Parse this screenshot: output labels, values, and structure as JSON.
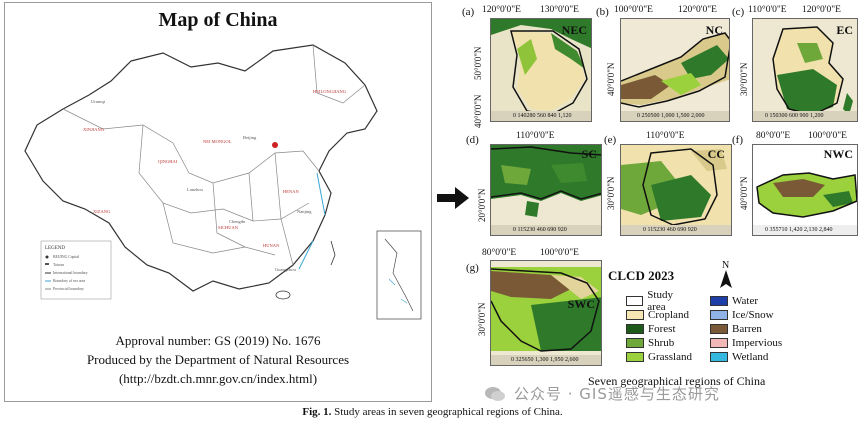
{
  "china_map": {
    "title": "Map of China",
    "approval": "Approval number: GS (2019) No. 1676",
    "produced_by": "Produced by the Department of Natural Resources",
    "url": "(http://bzdt.ch.mnr.gov.cn/index.html)"
  },
  "panels": [
    {
      "label": "(a)",
      "code": "NEC",
      "lon": [
        "120°0'0\"E",
        "130°0'0\"E"
      ],
      "lat": [
        "50°0'0\"N",
        "40°0'0\"N"
      ],
      "scale": "0 140280 560 840 1,120"
    },
    {
      "label": "(b)",
      "code": "NC",
      "lon": [
        "100°0'0\"E",
        "120°0'0\"E"
      ],
      "lat": [
        "40°0'0\"N"
      ],
      "scale": "0 250500 1,000 1,500 2,000"
    },
    {
      "label": "(c)",
      "code": "EC",
      "lon": [
        "110°0'0\"E",
        "120°0'0\"E"
      ],
      "lat": [
        "30°0'0\"N"
      ],
      "scale": "0 150300 600 900 1,200"
    },
    {
      "label": "(d)",
      "code": "SC",
      "lon": [
        "110°0'0\"E"
      ],
      "lat": [
        "20°0'0\"N"
      ],
      "scale": "0 115230 460 690 920"
    },
    {
      "label": "(e)",
      "code": "CC",
      "lon": [
        "110°0'0\"E"
      ],
      "lat": [
        "30°0'0\"N"
      ],
      "scale": "0 115230 460 690 920"
    },
    {
      "label": "(f)",
      "code": "NWC",
      "lon": [
        "80°0'0\"E",
        "100°0'0\"E"
      ],
      "lat": [
        "40°0'0\"N"
      ],
      "scale": "0 355710 1,420 2,130 2,840"
    },
    {
      "label": "(g)",
      "code": "SWC",
      "lon": [
        "80°0'0\"E",
        "100°0'0\"E"
      ],
      "lat": [
        "30°0'0\"N"
      ],
      "scale": "0 325650 1,300 1,950 2,600"
    }
  ],
  "legend": {
    "title": "CLCD 2023",
    "col1": [
      {
        "name": "Study area",
        "color": "#ffffff"
      },
      {
        "name": "Cropland",
        "color": "#f5e6b3"
      },
      {
        "name": "Forest",
        "color": "#1e5a1a"
      },
      {
        "name": "Shrub",
        "color": "#6fa83a"
      },
      {
        "name": "Grassland",
        "color": "#9bd13d"
      }
    ],
    "col2": [
      {
        "name": "Water",
        "color": "#1f3fa8"
      },
      {
        "name": "Ice/Snow",
        "color": "#8fb3e6"
      },
      {
        "name": "Barren",
        "color": "#7a5a36"
      },
      {
        "name": "Impervious",
        "color": "#f2b7b7"
      },
      {
        "name": "Wetland",
        "color": "#35b8e0"
      }
    ]
  },
  "north_label": "N",
  "regions_caption": "Seven geographical regions of China",
  "figure_caption": {
    "bold": "Fig. 1.",
    "text": "Study areas in seven geographical regions of China."
  },
  "watermark": "公众号 · GIS遥感与生态研究"
}
